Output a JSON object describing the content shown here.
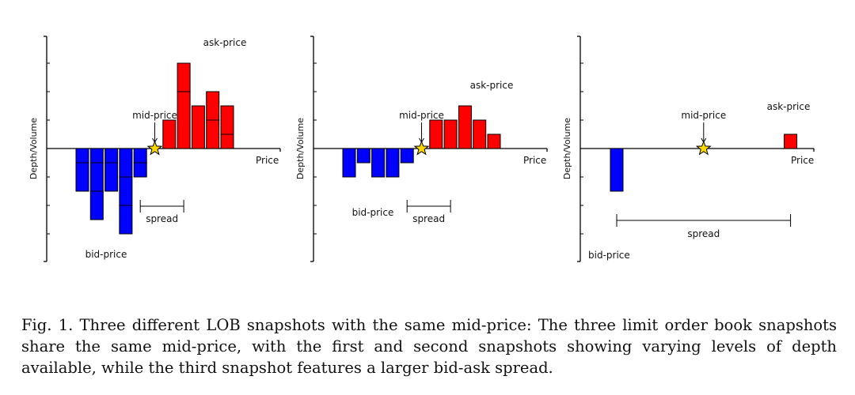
{
  "chart_data": [
    {
      "type": "bar",
      "panel": "first snapshot",
      "ylabel": "Depth/Volume",
      "xlabel": "Price",
      "mid_price_label": "mid-price",
      "ask_label": "ask-price",
      "bid_label": "bid-price",
      "spread_label": "spread",
      "grid": false,
      "bids": [
        {
          "level": 1,
          "volume": 3,
          "segments": [
            1,
            2
          ]
        },
        {
          "level": 2,
          "volume": 5,
          "segments": [
            1,
            2,
            2
          ]
        },
        {
          "level": 3,
          "volume": 3,
          "segments": [
            1,
            2
          ]
        },
        {
          "level": 4,
          "volume": 6,
          "segments": [
            2,
            2,
            2
          ]
        },
        {
          "level": 5,
          "volume": 2,
          "segments": [
            1,
            1
          ]
        }
      ],
      "asks": [
        {
          "level": 7,
          "volume": 2,
          "segments": [
            2
          ]
        },
        {
          "level": 8,
          "volume": 6,
          "segments": [
            4,
            2
          ]
        },
        {
          "level": 9,
          "volume": 3,
          "segments": [
            3
          ]
        },
        {
          "level": 10,
          "volume": 4,
          "segments": [
            2,
            2
          ]
        },
        {
          "level": 11,
          "volume": 3,
          "segments": [
            1,
            2
          ]
        }
      ],
      "mid_price_level": 6,
      "spread_levels": [
        5,
        8
      ]
    },
    {
      "type": "bar",
      "panel": "second snapshot",
      "ylabel": "Depth/Volume",
      "xlabel": "Price",
      "mid_price_label": "mid-price",
      "ask_label": "ask-price",
      "bid_label": "bid-price",
      "spread_label": "spread",
      "grid": false,
      "bids": [
        {
          "level": 1,
          "volume": 2,
          "segments": [
            2
          ]
        },
        {
          "level": 2,
          "volume": 1,
          "segments": [
            1
          ]
        },
        {
          "level": 3,
          "volume": 2,
          "segments": [
            2
          ]
        },
        {
          "level": 4,
          "volume": 2,
          "segments": [
            2
          ]
        },
        {
          "level": 5,
          "volume": 1,
          "segments": [
            1
          ]
        }
      ],
      "asks": [
        {
          "level": 7,
          "volume": 2,
          "segments": [
            2
          ]
        },
        {
          "level": 8,
          "volume": 2,
          "segments": [
            2
          ]
        },
        {
          "level": 9,
          "volume": 3,
          "segments": [
            3
          ]
        },
        {
          "level": 10,
          "volume": 2,
          "segments": [
            2
          ]
        },
        {
          "level": 11,
          "volume": 1,
          "segments": [
            1
          ]
        }
      ],
      "mid_price_level": 6,
      "spread_levels": [
        5,
        8
      ]
    },
    {
      "type": "bar",
      "panel": "third snapshot",
      "ylabel": "Depth/Volume",
      "xlabel": "Price",
      "mid_price_label": "mid-price",
      "ask_label": "ask-price",
      "bid_label": "bid-price",
      "spread_label": "spread",
      "grid": false,
      "bids": [
        {
          "level": 1,
          "volume": 3,
          "segments": [
            3
          ]
        }
      ],
      "asks": [
        {
          "level": 13,
          "volume": 1,
          "segments": [
            1
          ]
        }
      ],
      "mid_price_level": 7,
      "spread_levels": [
        1,
        13
      ]
    }
  ],
  "colors": {
    "bid": "#0000ff",
    "ask": "#ff0000",
    "star": "#ffd700"
  },
  "caption": "Fig. 1. Three different LOB snapshots with the same mid-price: The three limit order book snapshots share the same mid-price, with the first and second snapshots showing varying levels of depth available, while the third snapshot features a larger bid-ask spread."
}
